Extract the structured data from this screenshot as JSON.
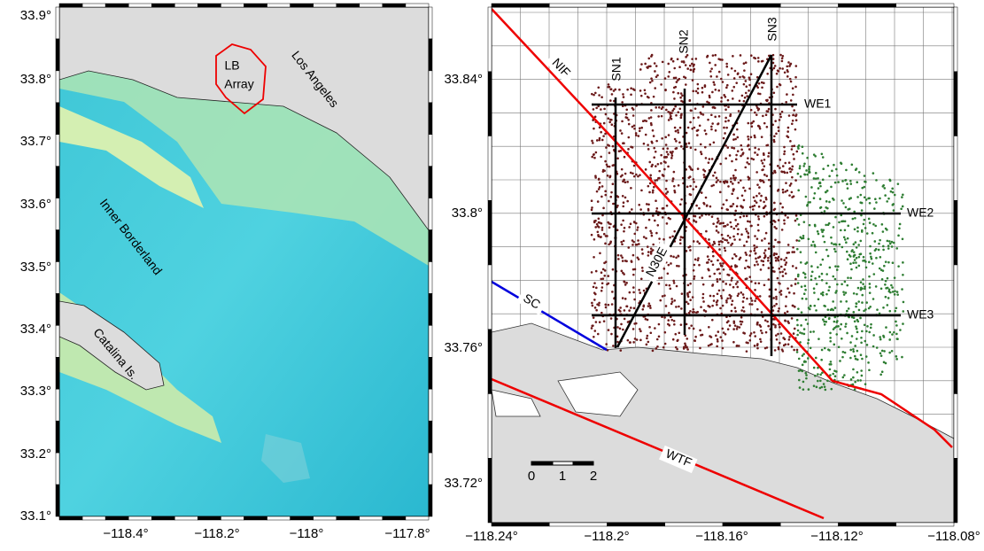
{
  "left_map": {
    "yticks": [
      "33.9°",
      "33.8°",
      "33.7°",
      "33.6°",
      "33.5°",
      "33.4°",
      "33.3°",
      "33.2°",
      "33.1°"
    ],
    "xticks": [
      "−118.4°",
      "−118.2°",
      "−118°",
      "−117.8°"
    ],
    "labels": {
      "lb_line1": "LB",
      "lb_line2": "Array",
      "los_angeles": "Los Angeles",
      "inner_borderland": "Inner Borderland",
      "catalina": "Catalina Is."
    }
  },
  "right_map": {
    "yticks": [
      "33.84°",
      "33.8°",
      "33.76°",
      "33.72°"
    ],
    "xticks": [
      "−118.24°",
      "−118.2°",
      "−118.16°",
      "−118.12°",
      "−118.08°"
    ],
    "faults": {
      "nif": "NIF",
      "sc": "SC",
      "wtf": "WTF"
    },
    "profiles": {
      "sn1": "SN1",
      "sn2": "SN2",
      "sn3": "SN3",
      "we1": "WE1",
      "we2": "WE2",
      "we3": "WE3",
      "n30e": "N30E"
    },
    "scale": [
      "0",
      "1",
      "2"
    ]
  }
}
